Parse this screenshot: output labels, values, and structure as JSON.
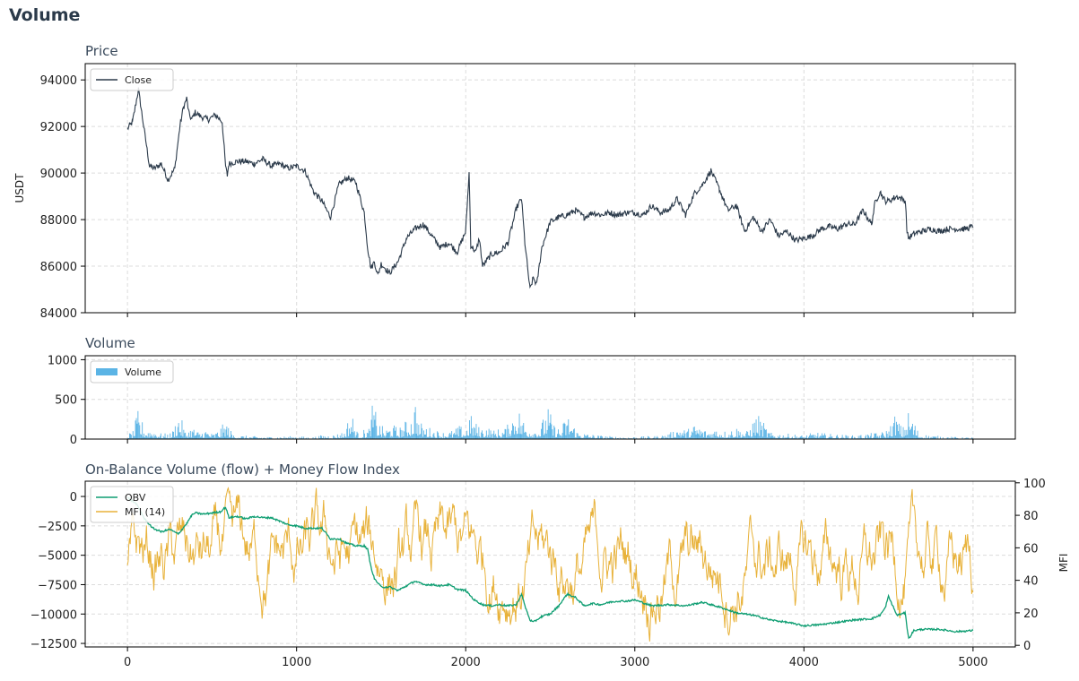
{
  "page": {
    "title": "Volume"
  },
  "chart_data": [
    {
      "type": "line",
      "title": "Price",
      "ylabel": "USDT",
      "xlim": [
        -250,
        5250
      ],
      "ylim": [
        84000,
        94700
      ],
      "xticks": [
        0,
        1000,
        2000,
        3000,
        4000,
        5000
      ],
      "yticks": [
        84000,
        86000,
        88000,
        90000,
        92000,
        94000
      ],
      "grid": true,
      "legend": "top-left",
      "series": [
        {
          "name": "Close",
          "color": "#2b3a4a",
          "x": [
            0,
            30,
            50,
            65,
            80,
            100,
            130,
            160,
            200,
            240,
            280,
            310,
            330,
            350,
            365,
            380,
            400,
            440,
            480,
            520,
            560,
            580,
            590,
            600,
            650,
            700,
            750,
            800,
            850,
            900,
            950,
            1000,
            1050,
            1100,
            1150,
            1200,
            1250,
            1300,
            1350,
            1400,
            1420,
            1440,
            1460,
            1480,
            1500,
            1550,
            1600,
            1650,
            1700,
            1750,
            1800,
            1850,
            1900,
            1950,
            2000,
            2020,
            2030,
            2060,
            2080,
            2100,
            2150,
            2200,
            2250,
            2300,
            2330,
            2350,
            2380,
            2400,
            2420,
            2450,
            2500,
            2550,
            2600,
            2650,
            2700,
            2750,
            2800,
            2850,
            2900,
            2950,
            3000,
            3050,
            3100,
            3150,
            3200,
            3250,
            3300,
            3350,
            3400,
            3450,
            3500,
            3550,
            3600,
            3650,
            3700,
            3750,
            3800,
            3850,
            3900,
            3950,
            4000,
            4050,
            4100,
            4150,
            4200,
            4250,
            4300,
            4350,
            4400,
            4420,
            4450,
            4480,
            4500,
            4550,
            4600,
            4610,
            4620,
            4650,
            4700,
            4750,
            4800,
            4850,
            4900,
            4950,
            5000
          ],
          "values": [
            91900,
            92200,
            93000,
            93600,
            92800,
            91800,
            90300,
            90200,
            90400,
            89700,
            90200,
            92000,
            92800,
            93200,
            92500,
            92300,
            92600,
            92400,
            92300,
            92500,
            92200,
            90300,
            89900,
            90400,
            90500,
            90500,
            90400,
            90600,
            90300,
            90400,
            90200,
            90300,
            90100,
            89200,
            88800,
            88100,
            89500,
            89800,
            89600,
            88300,
            86800,
            85900,
            86200,
            85600,
            86100,
            85700,
            86200,
            87200,
            87600,
            87800,
            87300,
            86800,
            87000,
            86600,
            87500,
            90000,
            86900,
            86600,
            87200,
            86000,
            86500,
            86600,
            87000,
            88500,
            88900,
            87000,
            85000,
            85500,
            85200,
            86800,
            87900,
            88100,
            88200,
            88400,
            88100,
            88300,
            88200,
            88300,
            88200,
            88300,
            88300,
            88200,
            88600,
            88300,
            88400,
            88900,
            88200,
            89100,
            89500,
            90100,
            89300,
            88400,
            88600,
            87500,
            88100,
            87500,
            88000,
            87300,
            87500,
            87100,
            87200,
            87300,
            87600,
            87700,
            87600,
            87800,
            87800,
            88400,
            87800,
            88700,
            89200,
            88800,
            88800,
            89000,
            88800,
            87400,
            87200,
            87400,
            87500,
            87600,
            87500,
            87600,
            87600,
            87600,
            87700
          ]
        }
      ]
    },
    {
      "type": "bar",
      "title": "Volume",
      "xlim": [
        -250,
        5250
      ],
      "ylim": [
        0,
        1050
      ],
      "xticks": [
        0,
        1000,
        2000,
        3000,
        4000,
        5000
      ],
      "yticks": [
        0,
        500,
        1000
      ],
      "grid": true,
      "legend": "top-left",
      "series": [
        {
          "name": "Volume",
          "color": "#5bb4e5",
          "x": [
            0,
            30,
            60,
            100,
            160,
            200,
            260,
            300,
            340,
            380,
            420,
            460,
            500,
            540,
            580,
            620,
            680,
            760,
            840,
            920,
            1000,
            1080,
            1150,
            1220,
            1280,
            1320,
            1360,
            1400,
            1430,
            1450,
            1480,
            1520,
            1560,
            1600,
            1640,
            1680,
            1700,
            1720,
            1760,
            1800,
            1860,
            1920,
            1960,
            2000,
            2020,
            2040,
            2080,
            2120,
            2160,
            2200,
            2240,
            2280,
            2300,
            2330,
            2360,
            2400,
            2440,
            2480,
            2520,
            2560,
            2600,
            2660,
            2720,
            2800,
            2880,
            2960,
            3040,
            3120,
            3200,
            3260,
            3300,
            3360,
            3420,
            3480,
            3540,
            3600,
            3660,
            3720,
            3800,
            3900,
            3960,
            4000,
            4060,
            4140,
            4220,
            4300,
            4360,
            4420,
            4460,
            4500,
            4540,
            4580,
            4620,
            4680,
            4760,
            4840,
            4920,
            5000
          ],
          "values": [
            60,
            90,
            320,
            130,
            110,
            60,
            70,
            320,
            90,
            150,
            80,
            120,
            60,
            110,
            210,
            60,
            40,
            30,
            25,
            30,
            35,
            20,
            45,
            50,
            90,
            330,
            70,
            110,
            140,
            450,
            200,
            110,
            180,
            120,
            200,
            270,
            490,
            200,
            150,
            120,
            80,
            100,
            150,
            120,
            290,
            240,
            130,
            160,
            100,
            120,
            140,
            320,
            410,
            270,
            170,
            130,
            140,
            390,
            170,
            120,
            300,
            90,
            60,
            40,
            30,
            25,
            30,
            35,
            60,
            160,
            100,
            180,
            100,
            130,
            90,
            140,
            90,
            300,
            70,
            60,
            50,
            40,
            80,
            60,
            50,
            40,
            60,
            70,
            80,
            130,
            300,
            110,
            350,
            60,
            40,
            30,
            20,
            20
          ]
        }
      ]
    },
    {
      "type": "line",
      "title": "On-Balance Volume (flow) + Money Flow Index",
      "ylabel": "",
      "y2label": "MFI",
      "xlim": [
        -250,
        5250
      ],
      "ylim": [
        -12800,
        1300
      ],
      "y2lim": [
        -1,
        101
      ],
      "xticks": [
        0,
        1000,
        2000,
        3000,
        4000,
        5000
      ],
      "yticks": [
        0,
        -2500,
        -5000,
        -7500,
        -10000,
        -12500
      ],
      "y2ticks": [
        0,
        20,
        40,
        60,
        80,
        100
      ],
      "grid": true,
      "legend": "top-left",
      "series": [
        {
          "name": "OBV",
          "axis": "left",
          "color": "#0f9e72",
          "x": [
            0,
            50,
            80,
            100,
            150,
            200,
            250,
            300,
            350,
            380,
            400,
            450,
            500,
            550,
            580,
            600,
            650,
            700,
            750,
            800,
            850,
            900,
            950,
            1000,
            1050,
            1100,
            1150,
            1200,
            1250,
            1300,
            1350,
            1400,
            1420,
            1440,
            1460,
            1500,
            1550,
            1600,
            1650,
            1700,
            1750,
            1800,
            1850,
            1900,
            1950,
            2000,
            2050,
            2100,
            2150,
            2200,
            2250,
            2300,
            2330,
            2350,
            2380,
            2400,
            2450,
            2500,
            2550,
            2600,
            2650,
            2700,
            2750,
            2800,
            2850,
            2900,
            2950,
            3000,
            3100,
            3200,
            3300,
            3400,
            3450,
            3500,
            3600,
            3700,
            3800,
            3900,
            4000,
            4100,
            4200,
            4300,
            4400,
            4450,
            4480,
            4500,
            4550,
            4600,
            4610,
            4620,
            4650,
            4700,
            4800,
            4900,
            5000
          ],
          "values": [
            -100,
            -600,
            -1300,
            -1900,
            -2700,
            -3000,
            -2800,
            -3200,
            -2300,
            -1600,
            -1400,
            -1500,
            -1400,
            -1300,
            -900,
            -1800,
            -1700,
            -1900,
            -1700,
            -1800,
            -1800,
            -2100,
            -2400,
            -2500,
            -2700,
            -2700,
            -2700,
            -3600,
            -3600,
            -4000,
            -4200,
            -4200,
            -4500,
            -6000,
            -7000,
            -7700,
            -7700,
            -8000,
            -7600,
            -7200,
            -7500,
            -7500,
            -7600,
            -7500,
            -7900,
            -8000,
            -8800,
            -9200,
            -9300,
            -9200,
            -9300,
            -9200,
            -8300,
            -9300,
            -10500,
            -10700,
            -10200,
            -10000,
            -9300,
            -8300,
            -8600,
            -9300,
            -9100,
            -9200,
            -9000,
            -8900,
            -8900,
            -8800,
            -9300,
            -9200,
            -9300,
            -9000,
            -9200,
            -9400,
            -9900,
            -10100,
            -10500,
            -10700,
            -11000,
            -10900,
            -10700,
            -10500,
            -10400,
            -10100,
            -9500,
            -8500,
            -10100,
            -9900,
            -11200,
            -12100,
            -11400,
            -11300,
            -11300,
            -11500,
            -11400
          ]
        },
        {
          "name": "MFI (14)",
          "axis": "right",
          "color": "#e8b23a"
        }
      ]
    }
  ]
}
